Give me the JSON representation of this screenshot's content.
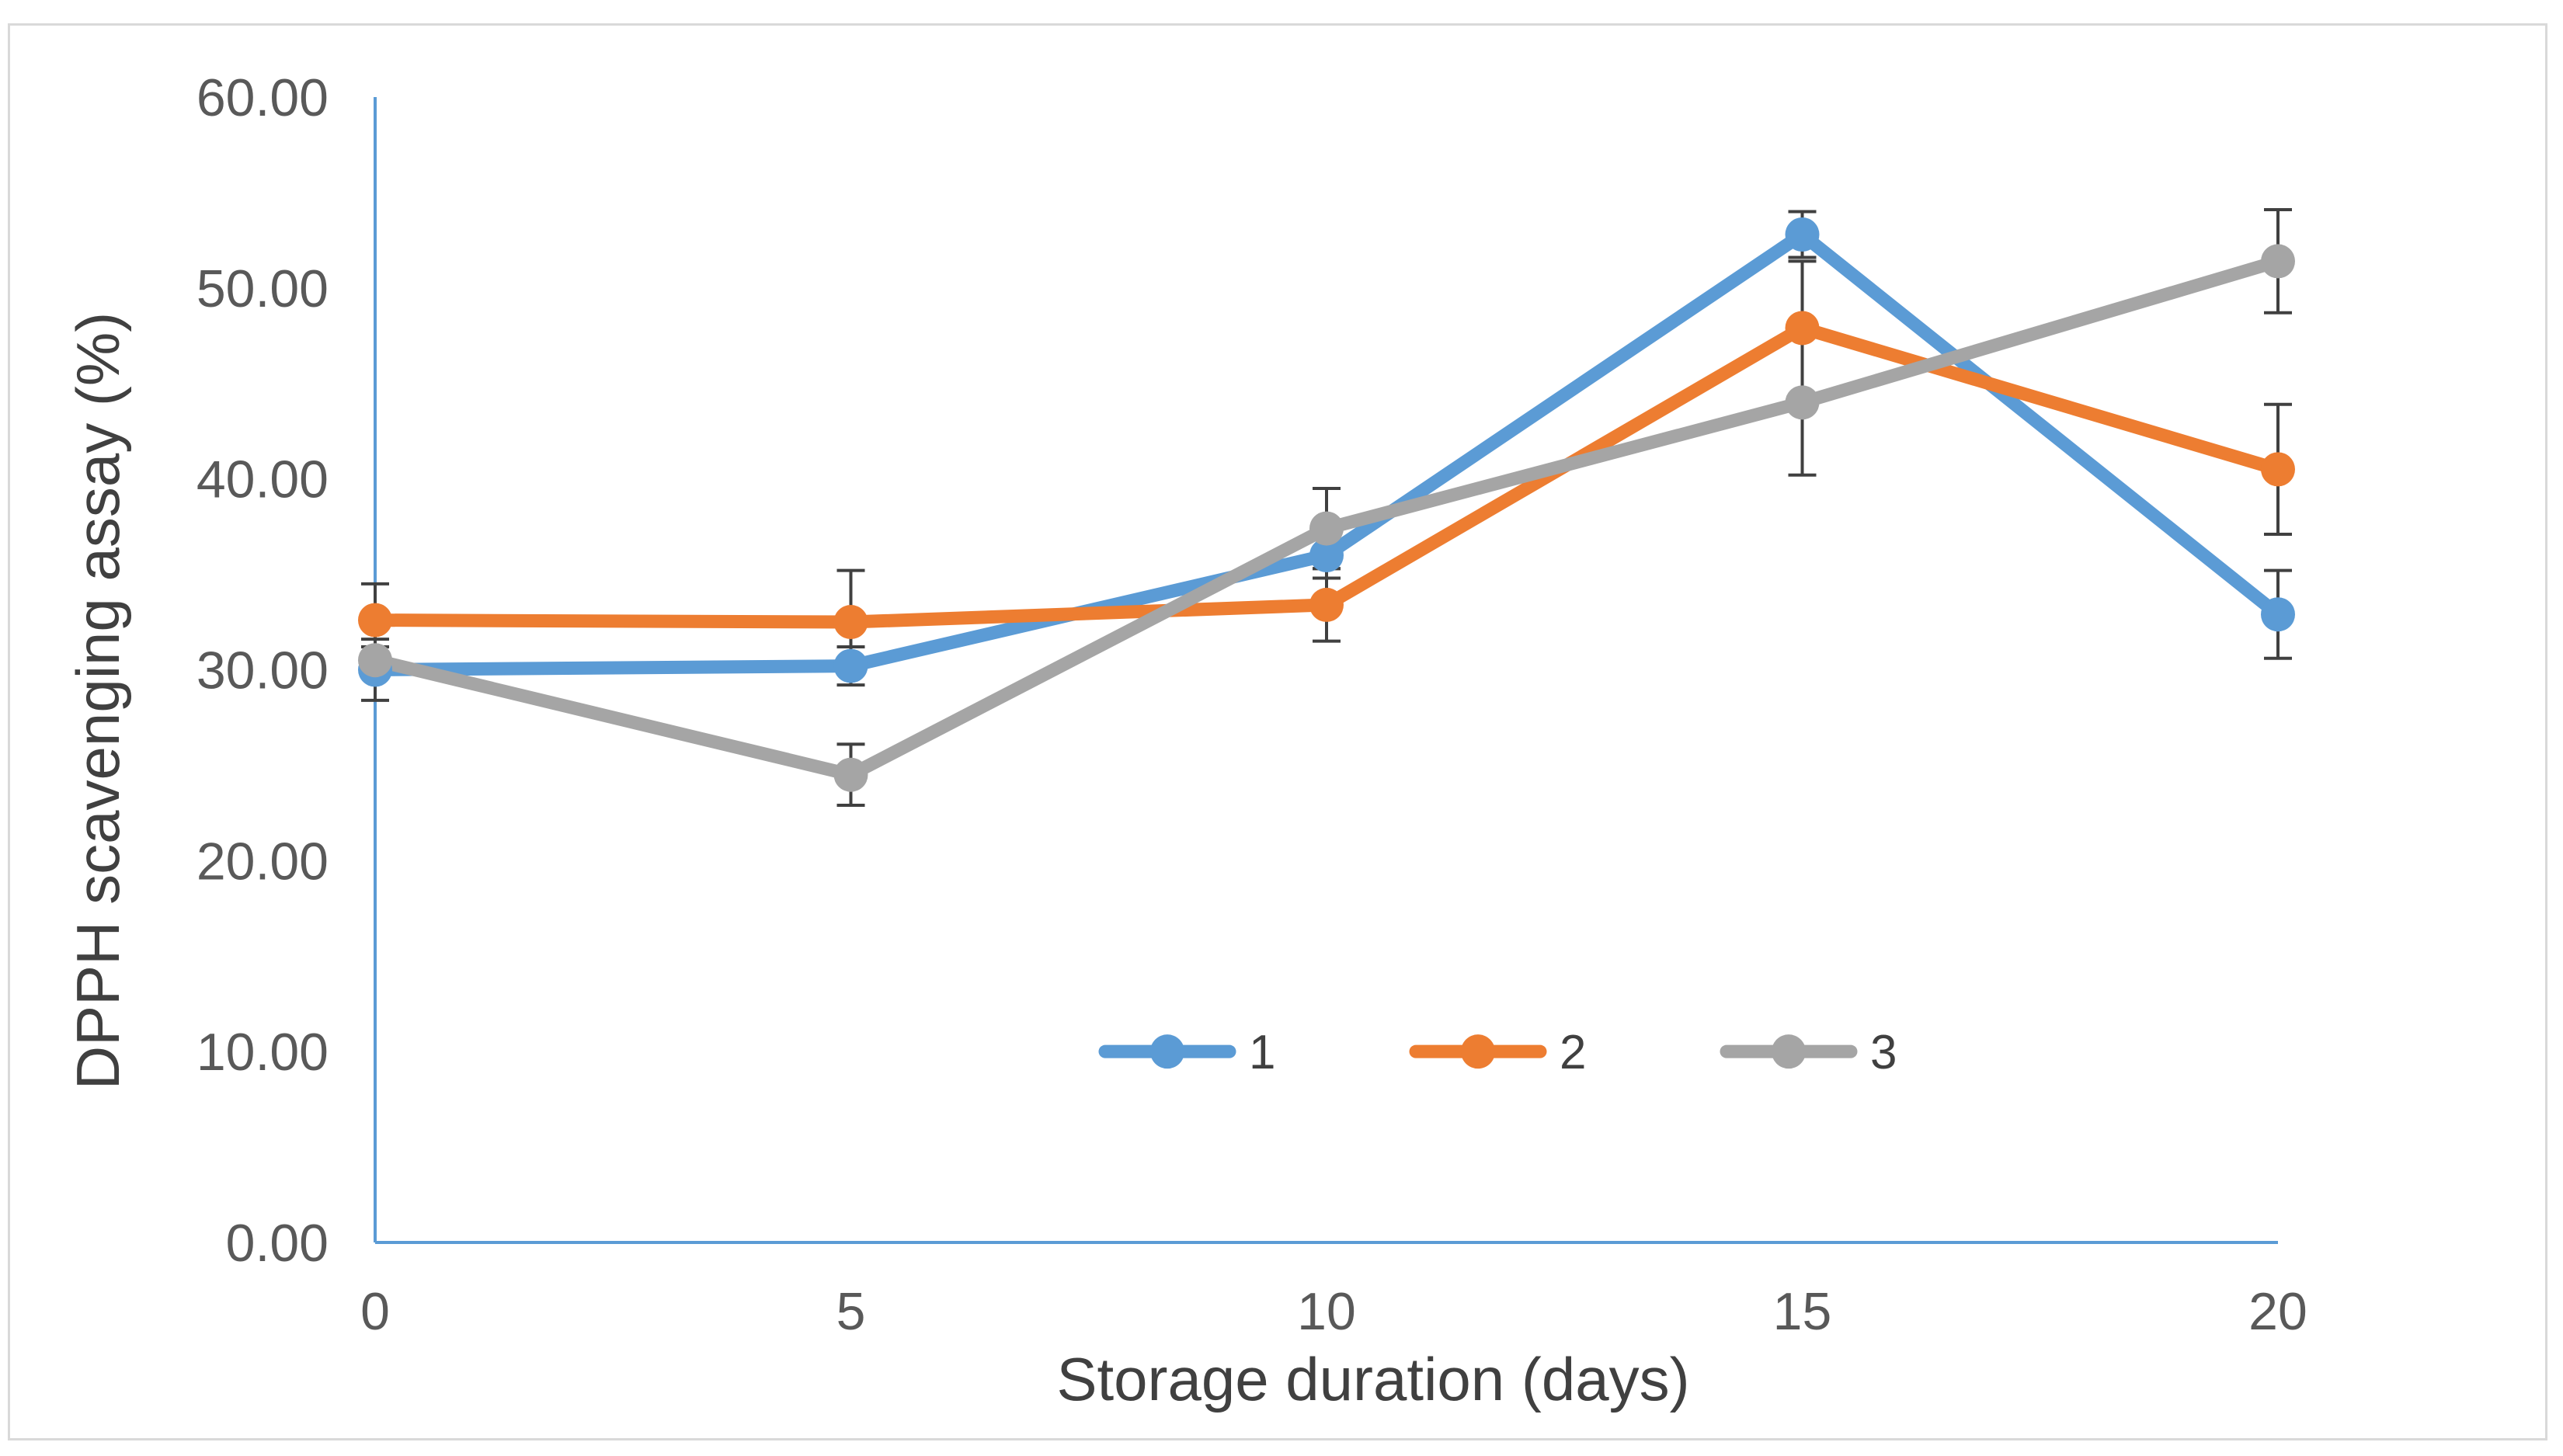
{
  "chart_data": {
    "type": "line",
    "title": "",
    "xlabel": "Storage duration (days)",
    "ylabel": "DPPH scavenging assay (%)",
    "x": [
      0,
      5,
      10,
      15,
      20
    ],
    "x_tick_labels": [
      "0",
      "5",
      "10",
      "15",
      "20"
    ],
    "xlim": [
      0,
      20
    ],
    "ylim": [
      0,
      60
    ],
    "y_ticks": [
      0,
      10,
      20,
      30,
      40,
      50,
      60
    ],
    "y_tick_labels": [
      "0.00",
      "10.00",
      "20.00",
      "30.00",
      "40.00",
      "50.00",
      "60.00"
    ],
    "grid": false,
    "legend_position": "inside-bottom-center",
    "series": [
      {
        "name": "1",
        "color": "#5b9bd5",
        "values": [
          30.0,
          30.2,
          36.0,
          52.8,
          32.9
        ],
        "errors": [
          1.6,
          1.0,
          1.2,
          1.2,
          2.3
        ]
      },
      {
        "name": "2",
        "color": "#ed7d31",
        "values": [
          32.6,
          32.5,
          33.4,
          47.9,
          40.5
        ],
        "errors": [
          1.9,
          2.7,
          1.9,
          3.5,
          3.4
        ]
      },
      {
        "name": "3",
        "color": "#a5a5a5",
        "values": [
          30.5,
          24.5,
          37.4,
          44.0,
          51.4
        ],
        "errors": [
          0.7,
          1.6,
          2.1,
          3.8,
          2.7
        ]
      }
    ]
  }
}
